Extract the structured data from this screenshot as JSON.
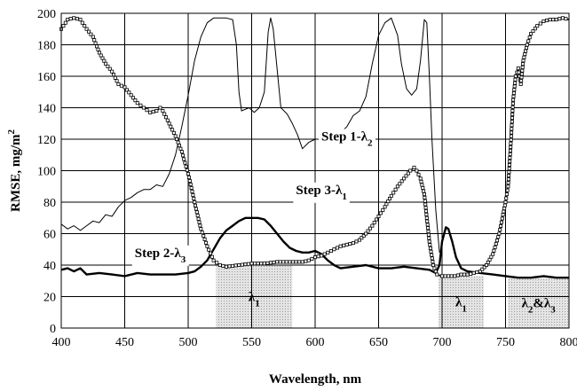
{
  "chart_data": {
    "type": "line",
    "xlabel": "Wavelength, nm",
    "ylabel": "RMSE, mg/m²",
    "xlim": [
      400,
      800
    ],
    "ylim": [
      0,
      200
    ],
    "x_ticks": [
      "400",
      "450",
      "500",
      "550",
      "600",
      "650",
      "700",
      "750",
      "800"
    ],
    "y_ticks": [
      "0",
      "20",
      "40",
      "60",
      "80",
      "100",
      "120",
      "140",
      "160",
      "180",
      "200"
    ],
    "grid": true,
    "legend": "none",
    "series": [
      {
        "name": "Step 1-λ2",
        "style": "thin",
        "color": "#000000",
        "points": [
          [
            400,
            66
          ],
          [
            405,
            63
          ],
          [
            410,
            65
          ],
          [
            415,
            62
          ],
          [
            420,
            65
          ],
          [
            425,
            68
          ],
          [
            430,
            67
          ],
          [
            435,
            72
          ],
          [
            440,
            71
          ],
          [
            445,
            77
          ],
          [
            450,
            81
          ],
          [
            455,
            83
          ],
          [
            460,
            86
          ],
          [
            465,
            88
          ],
          [
            470,
            88
          ],
          [
            475,
            91
          ],
          [
            480,
            90
          ],
          [
            485,
            98
          ],
          [
            490,
            110
          ],
          [
            495,
            128
          ],
          [
            500,
            148
          ],
          [
            505,
            170
          ],
          [
            510,
            185
          ],
          [
            515,
            194
          ],
          [
            520,
            197
          ],
          [
            530,
            197
          ],
          [
            535,
            196
          ],
          [
            538,
            180
          ],
          [
            540,
            150
          ],
          [
            542,
            138
          ],
          [
            548,
            140
          ],
          [
            552,
            137
          ],
          [
            556,
            140
          ],
          [
            560,
            150
          ],
          [
            563,
            188
          ],
          [
            565,
            197
          ],
          [
            567,
            190
          ],
          [
            570,
            165
          ],
          [
            573,
            140
          ],
          [
            578,
            136
          ],
          [
            582,
            130
          ],
          [
            586,
            123
          ],
          [
            590,
            114
          ],
          [
            595,
            118
          ],
          [
            600,
            120
          ],
          [
            610,
            120
          ],
          [
            615,
            122
          ],
          [
            620,
            124
          ],
          [
            625,
            128
          ],
          [
            630,
            135
          ],
          [
            635,
            138
          ],
          [
            640,
            147
          ],
          [
            645,
            168
          ],
          [
            650,
            186
          ],
          [
            655,
            194
          ],
          [
            660,
            197
          ],
          [
            665,
            186
          ],
          [
            668,
            168
          ],
          [
            672,
            152
          ],
          [
            676,
            148
          ],
          [
            680,
            152
          ],
          [
            683,
            170
          ],
          [
            686,
            196
          ],
          [
            688,
            194
          ],
          [
            690,
            160
          ],
          [
            692,
            120
          ],
          [
            695,
            75
          ],
          [
            698,
            48
          ]
        ]
      },
      {
        "name": "Step 2-λ3",
        "style": "thick",
        "color": "#000000",
        "points": [
          [
            400,
            37
          ],
          [
            405,
            38
          ],
          [
            410,
            36
          ],
          [
            415,
            38
          ],
          [
            420,
            34
          ],
          [
            430,
            35
          ],
          [
            440,
            34
          ],
          [
            450,
            33
          ],
          [
            460,
            35
          ],
          [
            470,
            34
          ],
          [
            480,
            34
          ],
          [
            490,
            34
          ],
          [
            500,
            35
          ],
          [
            505,
            36
          ],
          [
            510,
            39
          ],
          [
            515,
            43
          ],
          [
            520,
            50
          ],
          [
            525,
            57
          ],
          [
            530,
            62
          ],
          [
            535,
            65
          ],
          [
            540,
            68
          ],
          [
            545,
            70
          ],
          [
            555,
            70
          ],
          [
            560,
            69
          ],
          [
            565,
            65
          ],
          [
            570,
            60
          ],
          [
            575,
            55
          ],
          [
            580,
            51
          ],
          [
            585,
            49
          ],
          [
            590,
            48
          ],
          [
            595,
            48
          ],
          [
            600,
            49
          ],
          [
            605,
            47
          ],
          [
            610,
            43
          ],
          [
            615,
            40
          ],
          [
            620,
            38
          ],
          [
            630,
            39
          ],
          [
            640,
            40
          ],
          [
            650,
            38
          ],
          [
            660,
            38
          ],
          [
            670,
            39
          ],
          [
            680,
            38
          ],
          [
            690,
            37
          ],
          [
            695,
            35
          ],
          [
            698,
            40
          ],
          [
            700,
            55
          ],
          [
            703,
            64
          ],
          [
            705,
            63
          ],
          [
            708,
            55
          ],
          [
            711,
            45
          ],
          [
            715,
            38
          ],
          [
            720,
            36
          ],
          [
            730,
            35
          ],
          [
            740,
            34
          ],
          [
            750,
            33
          ],
          [
            760,
            32
          ],
          [
            770,
            32
          ],
          [
            780,
            33
          ],
          [
            790,
            32
          ],
          [
            800,
            32
          ]
        ]
      },
      {
        "name": "Step 3-λ1",
        "style": "marker",
        "color": "#000000",
        "points": [
          [
            400,
            190
          ],
          [
            405,
            196
          ],
          [
            410,
            197
          ],
          [
            415,
            196
          ],
          [
            420,
            190
          ],
          [
            425,
            185
          ],
          [
            430,
            175
          ],
          [
            435,
            168
          ],
          [
            440,
            163
          ],
          [
            445,
            155
          ],
          [
            450,
            153
          ],
          [
            455,
            148
          ],
          [
            460,
            143
          ],
          [
            465,
            140
          ],
          [
            470,
            137
          ],
          [
            475,
            138
          ],
          [
            478,
            140
          ],
          [
            480,
            138
          ],
          [
            485,
            130
          ],
          [
            490,
            122
          ],
          [
            495,
            112
          ],
          [
            500,
            98
          ],
          [
            505,
            80
          ],
          [
            510,
            63
          ],
          [
            515,
            52
          ],
          [
            520,
            43
          ],
          [
            525,
            40
          ],
          [
            530,
            39
          ],
          [
            540,
            40
          ],
          [
            550,
            41
          ],
          [
            560,
            41
          ],
          [
            570,
            42
          ],
          [
            580,
            42
          ],
          [
            590,
            42
          ],
          [
            595,
            43
          ],
          [
            600,
            45
          ],
          [
            605,
            46
          ],
          [
            610,
            48
          ],
          [
            615,
            50
          ],
          [
            620,
            52
          ],
          [
            625,
            53
          ],
          [
            630,
            54
          ],
          [
            635,
            56
          ],
          [
            640,
            60
          ],
          [
            645,
            65
          ],
          [
            650,
            71
          ],
          [
            655,
            77
          ],
          [
            660,
            84
          ],
          [
            665,
            90
          ],
          [
            670,
            95
          ],
          [
            675,
            100
          ],
          [
            678,
            102
          ],
          [
            680,
            100
          ],
          [
            683,
            95
          ],
          [
            686,
            85
          ],
          [
            688,
            70
          ],
          [
            690,
            55
          ],
          [
            693,
            40
          ],
          [
            696,
            34
          ],
          [
            700,
            33
          ],
          [
            705,
            33
          ],
          [
            710,
            33
          ],
          [
            715,
            34
          ],
          [
            720,
            34
          ],
          [
            725,
            35
          ],
          [
            730,
            36
          ],
          [
            735,
            40
          ],
          [
            740,
            47
          ],
          [
            745,
            60
          ],
          [
            748,
            72
          ],
          [
            750,
            80
          ],
          [
            752,
            90
          ],
          [
            754,
            115
          ],
          [
            756,
            145
          ],
          [
            758,
            160
          ],
          [
            760,
            165
          ],
          [
            762,
            155
          ],
          [
            764,
            170
          ],
          [
            767,
            180
          ],
          [
            770,
            187
          ],
          [
            775,
            192
          ],
          [
            780,
            195
          ],
          [
            785,
            196
          ],
          [
            790,
            196
          ],
          [
            795,
            197
          ],
          [
            800,
            196
          ]
        ]
      }
    ],
    "shaded_regions": [
      {
        "x0": 522,
        "x1": 582,
        "y0": 0,
        "y1": 40,
        "label": "λ1"
      },
      {
        "x0": 697,
        "x1": 733,
        "y0": 0,
        "y1": 33,
        "label": "λ1"
      },
      {
        "x0": 752,
        "x1": 800,
        "y0": 0,
        "y1": 32,
        "label": "λ2&λ3"
      }
    ],
    "annotations": [
      {
        "text": "Step 1-λ2",
        "x": 625,
        "y": 122
      },
      {
        "text": "Step 3-λ1",
        "x": 605,
        "y": 88
      },
      {
        "text": "Step 2-λ3",
        "x": 478,
        "y": 48
      }
    ]
  }
}
